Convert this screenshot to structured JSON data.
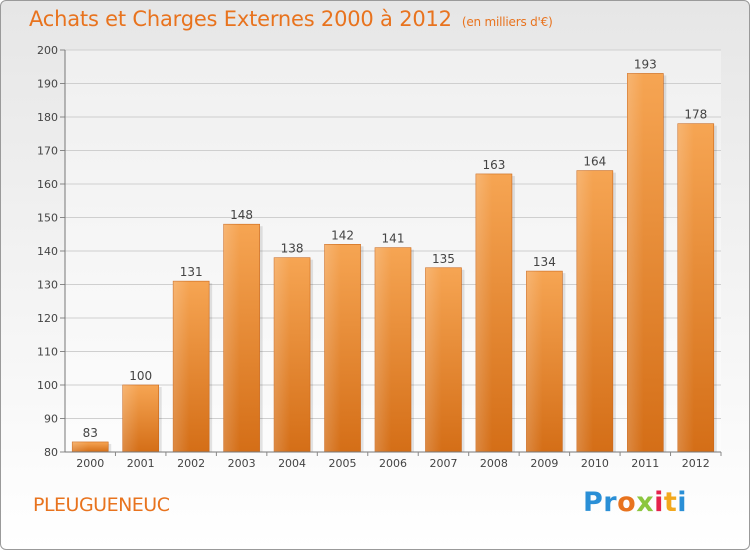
{
  "header": {
    "title": "Achats et Charges Externes 2000 à 2012",
    "subtitle": "(en milliers d'€)"
  },
  "footer": {
    "commune": "PLEUGUENEUC"
  },
  "logo": {
    "letters": [
      "P",
      "r",
      "o",
      "x",
      "i",
      "t",
      "i"
    ],
    "colors": [
      "#2a8fd6",
      "#2a8fd6",
      "#e8731e",
      "#8cc63f",
      "#e5224c",
      "#f2a81d",
      "#2a8fd6"
    ]
  },
  "chart_data": {
    "type": "bar",
    "categories": [
      "2000",
      "2001",
      "2002",
      "2003",
      "2004",
      "2005",
      "2006",
      "2007",
      "2008",
      "2009",
      "2010",
      "2011",
      "2012"
    ],
    "values": [
      83,
      100,
      131,
      148,
      138,
      142,
      141,
      135,
      163,
      134,
      164,
      193,
      178
    ],
    "title": "Achats et Charges Externes 2000 à 2012",
    "ylim": [
      80,
      200
    ],
    "yticks": [
      80,
      90,
      100,
      110,
      120,
      130,
      140,
      150,
      160,
      170,
      180,
      190,
      200
    ],
    "grid": true,
    "bar_color": "#f0953a"
  }
}
